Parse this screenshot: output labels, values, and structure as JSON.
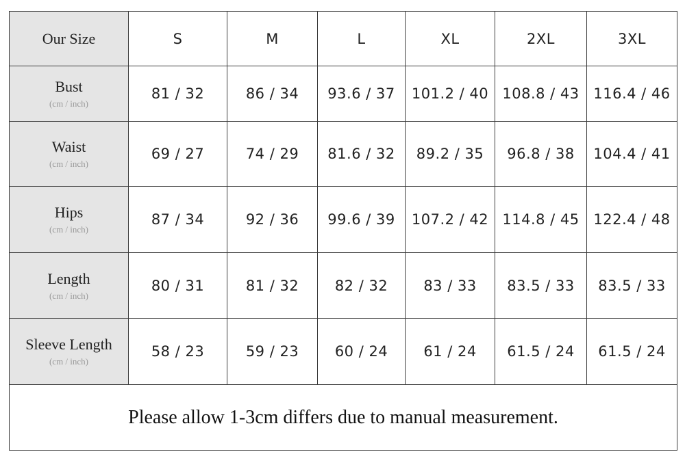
{
  "table": {
    "header": [
      "Our Size",
      "S",
      "M",
      "L",
      "XL",
      "2XL",
      "3XL"
    ],
    "rows": [
      {
        "label": "Bust",
        "unit": "(cm / inch)",
        "cells": [
          "81 / 32",
          "86 / 34",
          "93.6 / 37",
          "101.2 / 40",
          "108.8 / 43",
          "116.4 / 46"
        ]
      },
      {
        "label": "Waist",
        "unit": "(cm / inch)",
        "cells": [
          "69 / 27",
          "74 / 29",
          "81.6 / 32",
          "89.2 / 35",
          "96.8 / 38",
          "104.4 / 41"
        ]
      },
      {
        "label": "Hips",
        "unit": "(cm / inch)",
        "cells": [
          "87 / 34",
          "92 / 36",
          "99.6 / 39",
          "107.2 / 42",
          "114.8 / 45",
          "122.4 / 48"
        ]
      },
      {
        "label": "Length",
        "unit": "(cm / inch)",
        "cells": [
          "80 / 31",
          "81 / 32",
          "82 / 32",
          "83 / 33",
          "83.5 / 33",
          "83.5 / 33"
        ]
      },
      {
        "label": "Sleeve Length",
        "unit": "(cm / inch)",
        "cells": [
          "58 / 23",
          "59 / 23",
          "60 / 24",
          "61 / 24",
          "61.5 / 24",
          "61.5 / 24"
        ]
      }
    ],
    "note": "Please allow 1-3cm differs due to manual measurement."
  }
}
